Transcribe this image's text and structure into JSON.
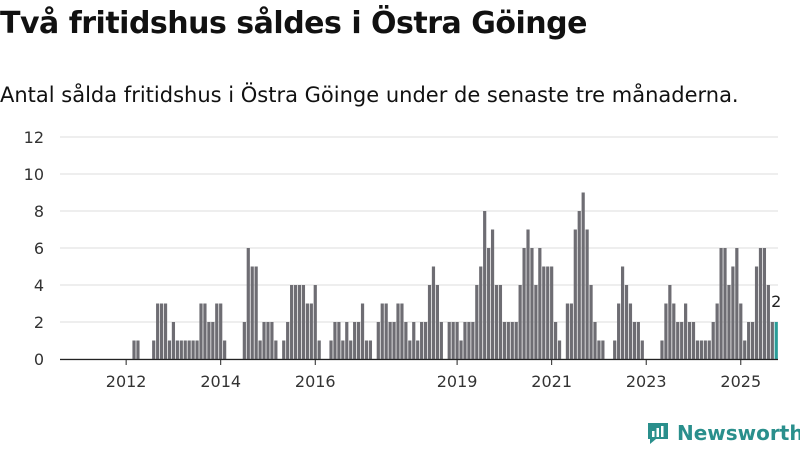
{
  "title": "Två fritidshus såldes i Östra Göinge",
  "subtitle": "Antal sålda fritidshus i Östra Göinge under de senaste tre månaderna.",
  "brand": "Newsworthy",
  "colors": {
    "bar": "#6e6d73",
    "highlight": "#2a9d98",
    "grid": "#dedede",
    "brand": "#2a8f8c"
  },
  "chart_data": {
    "type": "bar",
    "title": "Två fritidshus såldes i Östra Göinge",
    "xlabel": "",
    "ylabel": "",
    "ylim": [
      0,
      12
    ],
    "yticks": [
      0,
      2,
      4,
      6,
      8,
      10,
      12
    ],
    "x_start": "2011-01",
    "x_ticks": [
      {
        "label": "2012",
        "index": 16
      },
      {
        "label": "2014",
        "index": 40
      },
      {
        "label": "2016",
        "index": 64
      },
      {
        "label": "2019",
        "index": 100
      },
      {
        "label": "2021",
        "index": 124
      },
      {
        "label": "2023",
        "index": 148
      },
      {
        "label": "2025",
        "index": 172
      }
    ],
    "highlight_label": "2",
    "values": [
      0,
      0,
      0,
      0,
      0,
      0,
      0,
      0,
      0,
      0,
      0,
      0,
      0,
      0,
      0,
      0,
      0,
      0,
      1,
      1,
      0,
      0,
      0,
      1,
      3,
      3,
      3,
      1,
      2,
      1,
      1,
      1,
      1,
      1,
      1,
      3,
      3,
      2,
      2,
      3,
      3,
      1,
      0,
      0,
      0,
      0,
      2,
      6,
      5,
      5,
      1,
      2,
      2,
      2,
      1,
      0,
      1,
      2,
      4,
      4,
      4,
      4,
      3,
      3,
      4,
      1,
      0,
      0,
      1,
      2,
      2,
      1,
      2,
      1,
      2,
      2,
      3,
      1,
      1,
      0,
      2,
      3,
      3,
      2,
      2,
      3,
      3,
      2,
      1,
      2,
      1,
      2,
      2,
      4,
      5,
      4,
      2,
      0,
      2,
      2,
      2,
      1,
      2,
      2,
      2,
      4,
      5,
      8,
      6,
      7,
      4,
      4,
      2,
      2,
      2,
      2,
      4,
      6,
      7,
      6,
      4,
      6,
      5,
      5,
      5,
      2,
      1,
      0,
      3,
      3,
      7,
      8,
      9,
      7,
      4,
      2,
      1,
      1,
      0,
      0,
      1,
      3,
      5,
      4,
      3,
      2,
      2,
      1,
      0,
      0,
      0,
      0,
      1,
      3,
      4,
      3,
      2,
      2,
      3,
      2,
      2,
      1,
      1,
      1,
      1,
      2,
      3,
      6,
      6,
      4,
      5,
      6,
      3,
      1,
      2,
      2,
      5,
      6,
      6,
      4,
      2,
      2
    ],
    "series": [
      {
        "name": "Antal sålda fritidshus",
        "values": "values"
      }
    ]
  }
}
